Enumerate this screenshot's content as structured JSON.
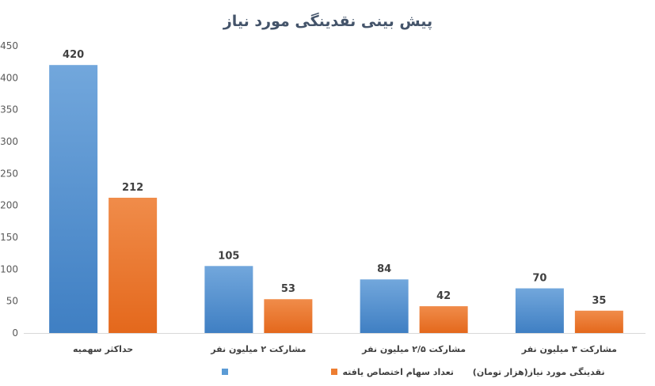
{
  "chart_data": {
    "type": "bar",
    "title": "پیش بینی نقدینگی مورد نیاز",
    "categories": [
      "حداکثر سهمیه",
      "مشارکت ۲ میلیون نفر",
      "مشارکت ۲/۵ میلیون نفر",
      "مشارکت ۳ میلیون نفر"
    ],
    "series": [
      {
        "name": "تعداد سهام اختصاص یافته",
        "values": [
          420,
          105,
          84,
          70
        ],
        "color": "#5b9bd5"
      },
      {
        "name": "نقدینگی مورد نیاز(هزار تومان)",
        "values": [
          212,
          53,
          42,
          35
        ],
        "color": "#ed7d31"
      }
    ],
    "yticks": [
      0,
      50,
      100,
      150,
      200,
      250,
      300,
      350,
      400,
      450
    ],
    "ylim": [
      0,
      450
    ],
    "grid": false,
    "legend_position": "bottom"
  }
}
